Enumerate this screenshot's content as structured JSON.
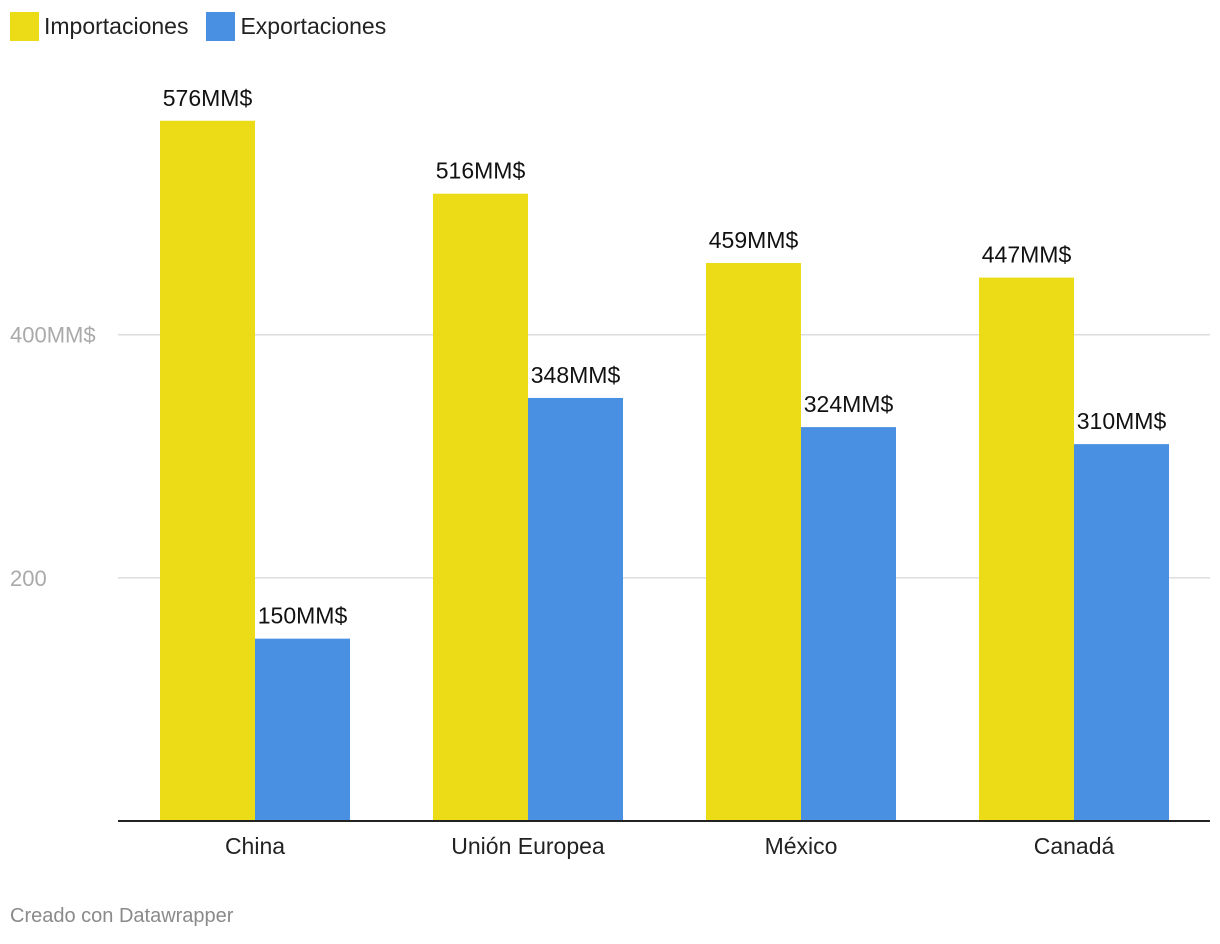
{
  "chart_data": {
    "type": "bar",
    "categories": [
      "China",
      "Unión Europea",
      "México",
      "Canadá"
    ],
    "series": [
      {
        "name": "Importaciones",
        "color": "#ecdc18",
        "values": [
          576,
          516,
          459,
          447
        ],
        "labels": [
          "576MM$",
          "516MM$",
          "459MM$",
          "447MM$"
        ]
      },
      {
        "name": "Exportaciones",
        "color": "#4a90e2",
        "values": [
          150,
          348,
          324,
          310
        ],
        "labels": [
          "150MM$",
          "348MM$",
          "324MM$",
          "310MM$"
        ]
      }
    ],
    "y_ticks": [
      {
        "value": 200,
        "label": "200"
      },
      {
        "value": 400,
        "label": "400MM$"
      }
    ],
    "ylim": [
      0,
      600
    ],
    "grid": true,
    "legend_placement": "top-left"
  },
  "footer": "Creado con Datawrapper"
}
